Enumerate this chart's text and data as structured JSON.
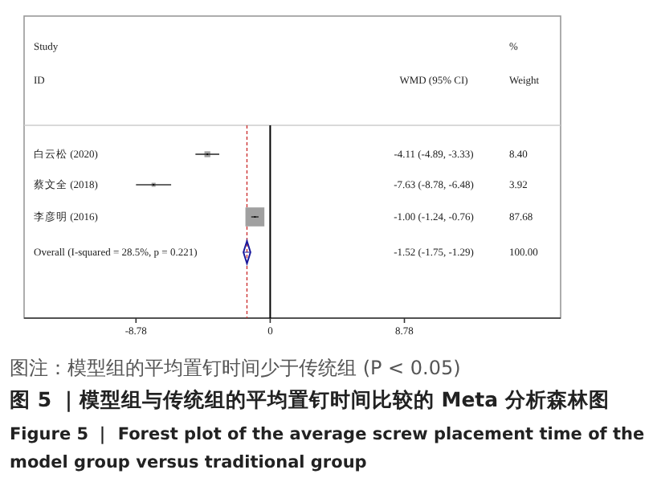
{
  "chart_data": {
    "type": "scatter",
    "orientation": "horizontal",
    "categories": [
      "白云松 (2020)",
      "蔡文全 (2018)",
      "李彦明 (2016)",
      "Overall  (I-squared = 28.5%, p = 0.221)"
    ],
    "series": [
      {
        "marker": "square",
        "color": "#a0a0a0",
        "values": [
          -4.11,
          -7.63,
          -1.0,
          null
        ],
        "errors": [
          [
            -4.89,
            -3.33
          ],
          [
            -8.78,
            -6.48
          ],
          [
            -1.24,
            -0.76
          ],
          null
        ],
        "sizes": [
          0.096,
          0.045,
          1,
          null
        ]
      },
      {
        "marker": "diamond",
        "color": "#1a1a9e",
        "values": [
          null,
          null,
          null,
          -1.52
        ],
        "errors": [
          null,
          null,
          null,
          [
            -1.75,
            -1.29
          ]
        ]
      }
    ],
    "xlim": [
      -16.1,
      19.0
    ],
    "xticks": [
      -8.78,
      0,
      8.78
    ],
    "ref_lines": [
      {
        "axis": "x",
        "value": 0,
        "color": "#000000",
        "line_style": "solid"
      },
      {
        "axis": "x",
        "value": -1.52,
        "color": "#cc3333",
        "line_style": "dashed"
      }
    ],
    "annotations": [
      "Study",
      "ID",
      "WMD (95% CI)",
      "%",
      "Weight",
      "-4.11 (-4.89, -3.33)",
      "8.40",
      "-7.63 (-8.78, -6.48)",
      "3.92",
      "-1.00 (-1.24, -0.76)",
      "87.68",
      "-1.52 (-1.75, -1.29)",
      "100.00",
      "图注：模型组的平均置钉时间少于传统组 (P < 0.05)",
      "图 5 ｜模型组与传统组的平均置钉时间比较的 Meta 分析森林图",
      "Figure 5 ｜ Forest plot of the average screw placement time of the model group versus traditional group"
    ]
  }
}
